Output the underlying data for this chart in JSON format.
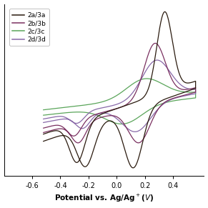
{
  "xlim": [
    -0.8,
    0.62
  ],
  "ylim": [
    -1.0,
    1.0
  ],
  "xlabel": "Potential vs. Ag/Ag$^+$($V$)",
  "xticks": [
    -0.6,
    -0.4,
    -0.2,
    0.0,
    0.2,
    0.4
  ],
  "legend_labels": [
    "2a/3a",
    "2b/3b",
    "2c/3c",
    "2d/3d"
  ],
  "colors": {
    "2a/3a": "#2a1a0e",
    "2b/3b": "#7a3060",
    "2c/3c": "#5aa55a",
    "2d/3d": "#8868a8"
  },
  "figsize": [
    2.91,
    2.91
  ],
  "dpi": 100
}
